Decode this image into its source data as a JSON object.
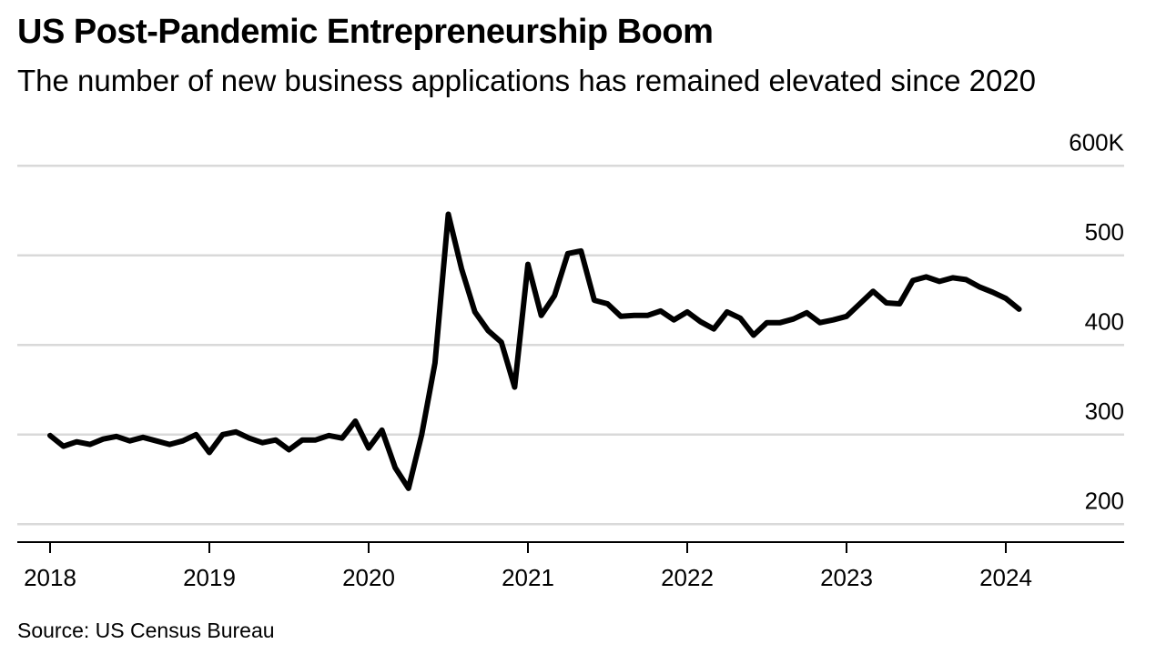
{
  "title": "US Post-Pandemic Entrepreneurship Boom",
  "subtitle": "The number of new business applications has remained elevated since 2020",
  "source": "Source: US Census Bureau",
  "chart_data": {
    "type": "line",
    "title": "US Post-Pandemic Entrepreneurship Boom",
    "subtitle": "The number of new business applications has remained elevated since 2020",
    "xlabel": "",
    "ylabel": "",
    "x_start": "2018-01",
    "x_frequency": "monthly",
    "x_ticks": [
      "2018",
      "2019",
      "2020",
      "2021",
      "2022",
      "2023",
      "2024"
    ],
    "y_ticks": [
      {
        "value": 600,
        "label": "600K"
      },
      {
        "value": 500,
        "label": "500"
      },
      {
        "value": 400,
        "label": "400"
      },
      {
        "value": 300,
        "label": "300"
      },
      {
        "value": 200,
        "label": "200"
      }
    ],
    "ylim": [
      180,
      620
    ],
    "y_unit": "thousands",
    "grid": true,
    "line_color": "#000000",
    "series": [
      {
        "name": "New business applications",
        "values": [
          299,
          287,
          292,
          289,
          295,
          298,
          293,
          297,
          293,
          289,
          293,
          300,
          280,
          300,
          303,
          296,
          291,
          294,
          283,
          294,
          294,
          299,
          296,
          315,
          285,
          305,
          263,
          240,
          300,
          380,
          546,
          485,
          437,
          416,
          403,
          353,
          490,
          433,
          455,
          502,
          505,
          450,
          446,
          432,
          433,
          433,
          438,
          428,
          437,
          426,
          418,
          437,
          430,
          411,
          425,
          425,
          429,
          436,
          425,
          428,
          432,
          446,
          460,
          447,
          446,
          472,
          476,
          471,
          475,
          473,
          465,
          459,
          452,
          440
        ]
      }
    ]
  }
}
